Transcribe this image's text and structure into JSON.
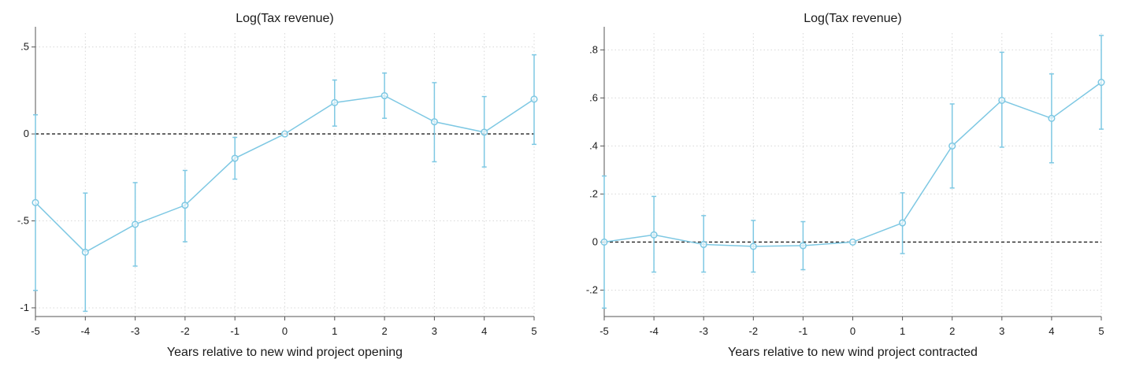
{
  "colors": {
    "series": "#7ec8e3",
    "zero_line": "#222222",
    "grid": "#d8d8d8"
  },
  "chart_data": [
    {
      "type": "line",
      "title": "Log(Tax revenue)",
      "xlabel": "Years relative to new wind project opening",
      "ylabel": "",
      "x": [
        -5,
        -4,
        -3,
        -2,
        -1,
        0,
        1,
        2,
        3,
        4,
        5
      ],
      "xticks": [
        "-5",
        "-4",
        "-3",
        "-2",
        "-1",
        "0",
        "1",
        "2",
        "3",
        "4",
        "5"
      ],
      "yticks": [
        -1,
        -0.5,
        0,
        0.5
      ],
      "ytick_labels": [
        "-1",
        "-.5",
        "0",
        ".5"
      ],
      "xlim": [
        -5,
        5
      ],
      "ylim": [
        -1.05,
        0.58
      ],
      "grid": true,
      "reference_line": 0,
      "series": [
        {
          "values": [
            -0.395,
            -0.68,
            -0.52,
            -0.41,
            -0.14,
            0.0,
            0.18,
            0.22,
            0.07,
            0.01,
            0.2
          ],
          "ci_low": [
            -0.9,
            -1.02,
            -0.76,
            -0.62,
            -0.26,
            0.0,
            0.045,
            0.09,
            -0.16,
            -0.19,
            -0.06
          ],
          "ci_high": [
            0.11,
            -0.34,
            -0.28,
            -0.21,
            -0.02,
            0.0,
            0.31,
            0.35,
            0.295,
            0.215,
            0.455
          ]
        }
      ]
    },
    {
      "type": "line",
      "title": "Log(Tax revenue)",
      "xlabel": "Years relative to new wind project contracted",
      "ylabel": "",
      "x": [
        -5,
        -4,
        -3,
        -2,
        -1,
        0,
        1,
        2,
        3,
        4,
        5
      ],
      "xticks": [
        "-5",
        "-4",
        "-3",
        "-2",
        "-1",
        "0",
        "1",
        "2",
        "3",
        "4",
        "5"
      ],
      "yticks": [
        -0.2,
        0,
        0.2,
        0.4,
        0.6,
        0.8
      ],
      "ytick_labels": [
        "-.2",
        "0",
        ".2",
        ".4",
        ".6",
        ".8"
      ],
      "xlim": [
        -5,
        5
      ],
      "ylim": [
        -0.31,
        0.87
      ],
      "grid": true,
      "reference_line": 0,
      "series": [
        {
          "values": [
            0.0,
            0.03,
            -0.01,
            -0.018,
            -0.015,
            0.0,
            0.08,
            0.4,
            0.59,
            0.515,
            0.665
          ],
          "ci_low": [
            -0.275,
            -0.125,
            -0.125,
            -0.125,
            -0.115,
            0.0,
            -0.048,
            0.225,
            0.395,
            0.33,
            0.47
          ],
          "ci_high": [
            0.275,
            0.19,
            0.11,
            0.09,
            0.085,
            0.0,
            0.205,
            0.575,
            0.79,
            0.7,
            0.86
          ]
        }
      ]
    }
  ]
}
